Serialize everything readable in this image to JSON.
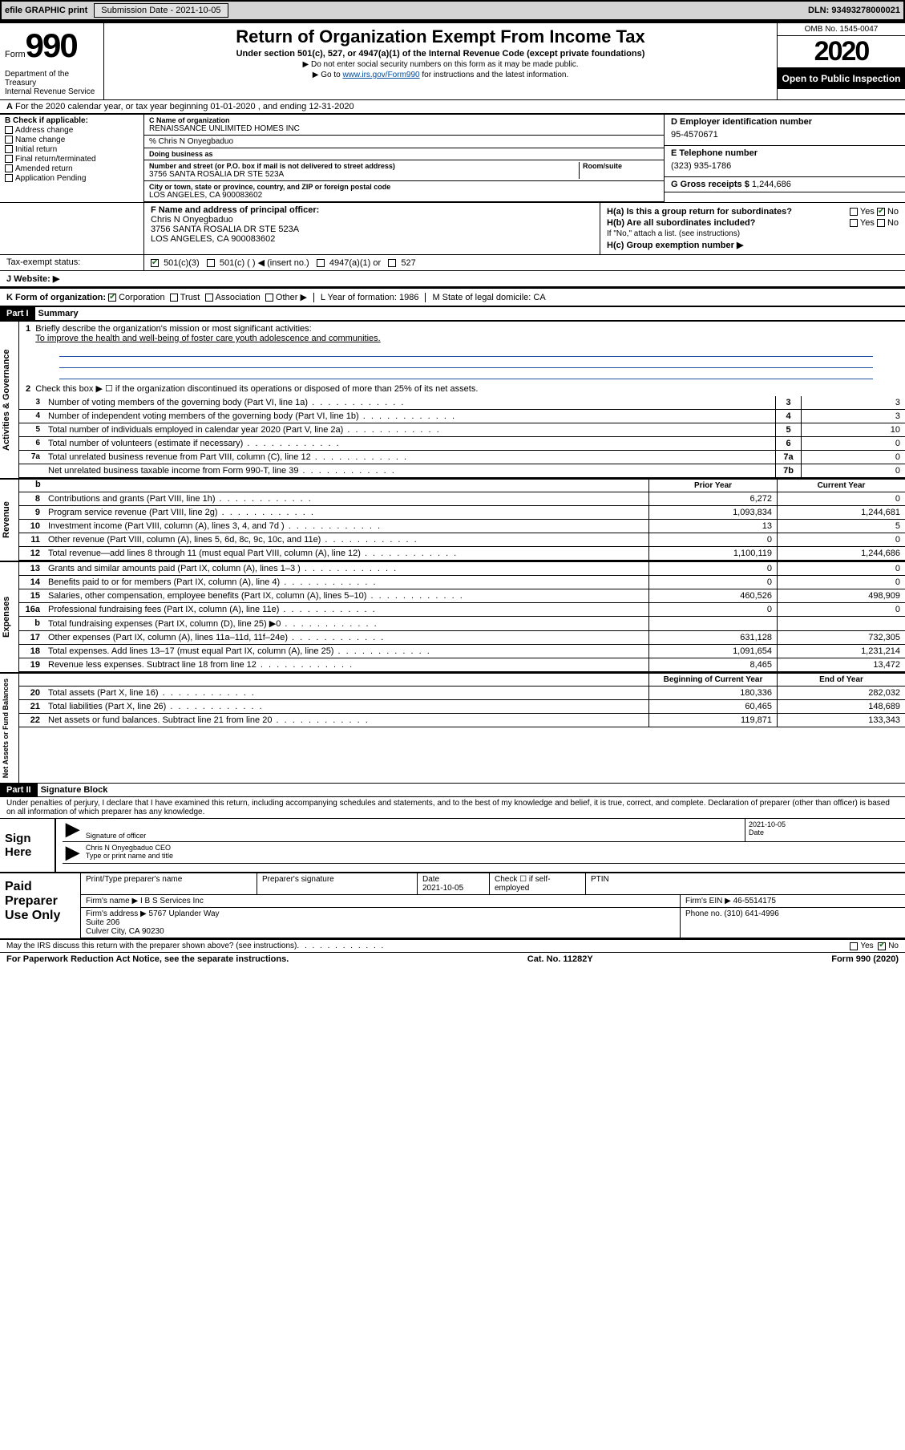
{
  "topbar": {
    "efile_label": "efile GRAPHIC print",
    "sub_label": "Submission Date - 2021-10-05",
    "dln": "DLN: 93493278000021"
  },
  "header": {
    "form_word": "Form",
    "form_num": "990",
    "dept": "Department of the Treasury\nInternal Revenue Service",
    "title": "Return of Organization Exempt From Income Tax",
    "sub1": "Under section 501(c), 527, or 4947(a)(1) of the Internal Revenue Code (except private foundations)",
    "sub2": "Do not enter social security numbers on this form as it may be made public.",
    "sub3_a": "Go to ",
    "sub3_link": "www.irs.gov/Form990",
    "sub3_b": " for instructions and the latest information.",
    "omb": "OMB No. 1545-0047",
    "year": "2020",
    "open": "Open to Public Inspection"
  },
  "line_a": "For the 2020 calendar year, or tax year beginning 01-01-2020    , and ending 12-31-2020",
  "box_b": {
    "hdr": "B Check if applicable:",
    "items": [
      "Address change",
      "Name change",
      "Initial return",
      "Final return/terminated",
      "Amended return",
      "Application Pending"
    ]
  },
  "box_c": {
    "name_lbl": "C Name of organization",
    "name": "RENAISSANCE UNLIMITED HOMES INC",
    "care": "% Chris N Onyegbaduo",
    "dba_lbl": "Doing business as",
    "addr_lbl": "Number and street (or P.O. box if mail is not delivered to street address)",
    "room_lbl": "Room/suite",
    "addr": "3756 SANTA ROSALIA DR STE 523A",
    "city_lbl": "City or town, state or province, country, and ZIP or foreign postal code",
    "city": "LOS ANGELES, CA   900083602"
  },
  "box_d": {
    "lbl": "D Employer identification number",
    "val": "95-4570671"
  },
  "box_e": {
    "lbl": "E Telephone number",
    "val": "(323) 935-1786"
  },
  "box_g": {
    "lbl": "G Gross receipts $",
    "val": "1,244,686"
  },
  "box_f": {
    "lbl": "F  Name and address of principal officer:",
    "name": "Chris N Onyegbaduo",
    "addr1": "3756 SANTA ROSALIA DR STE 523A",
    "addr2": "LOS ANGELES, CA   900083602"
  },
  "box_h": {
    "a": "H(a)  Is this a group return for subordinates?",
    "b": "H(b)  Are all subordinates included?",
    "b_note": "If \"No,\" attach a list. (see instructions)",
    "c": "H(c)  Group exemption number ▶",
    "yes": "Yes",
    "no": "No"
  },
  "box_i": {
    "lbl": "Tax-exempt status:",
    "opts": [
      "501(c)(3)",
      "501(c) (  ) ◀ (insert no.)",
      "4947(a)(1) or",
      "527"
    ]
  },
  "box_j": "J   Website: ▶",
  "box_k": {
    "lbl": "K Form of organization:",
    "opts": [
      "Corporation",
      "Trust",
      "Association",
      "Other ▶"
    ],
    "l": "L Year of formation: 1986",
    "m": "M State of legal domicile: CA"
  },
  "part1": {
    "num": "Part I",
    "title": "Summary"
  },
  "gov": {
    "vtab": "Activities & Governance",
    "l1_lbl": "Briefly describe the organization's mission or most significant activities:",
    "l1_val": "To improve the health and well-being of foster care youth adolescence and communities.",
    "l2": "Check this box ▶ ☐  if the organization discontinued its operations or disposed of more than 25% of its net assets.",
    "rows": [
      {
        "n": "3",
        "t": "Number of voting members of the governing body (Part VI, line 1a)",
        "b": "3",
        "v": "3"
      },
      {
        "n": "4",
        "t": "Number of independent voting members of the governing body (Part VI, line 1b)",
        "b": "4",
        "v": "3"
      },
      {
        "n": "5",
        "t": "Total number of individuals employed in calendar year 2020 (Part V, line 2a)",
        "b": "5",
        "v": "10"
      },
      {
        "n": "6",
        "t": "Total number of volunteers (estimate if necessary)",
        "b": "6",
        "v": "0"
      },
      {
        "n": "7a",
        "t": "Total unrelated business revenue from Part VIII, column (C), line 12",
        "b": "7a",
        "v": "0"
      },
      {
        "n": "",
        "t": "Net unrelated business taxable income from Form 990-T, line 39",
        "b": "7b",
        "v": "0"
      }
    ]
  },
  "rev": {
    "vtab": "Revenue",
    "hdr_prior": "Prior Year",
    "hdr_curr": "Current Year",
    "rows": [
      {
        "n": "8",
        "t": "Contributions and grants (Part VIII, line 1h)",
        "py": "6,272",
        "cy": "0"
      },
      {
        "n": "9",
        "t": "Program service revenue (Part VIII, line 2g)",
        "py": "1,093,834",
        "cy": "1,244,681"
      },
      {
        "n": "10",
        "t": "Investment income (Part VIII, column (A), lines 3, 4, and 7d )",
        "py": "13",
        "cy": "5"
      },
      {
        "n": "11",
        "t": "Other revenue (Part VIII, column (A), lines 5, 6d, 8c, 9c, 10c, and 11e)",
        "py": "0",
        "cy": "0"
      },
      {
        "n": "12",
        "t": "Total revenue—add lines 8 through 11 (must equal Part VIII, column (A), line 12)",
        "py": "1,100,119",
        "cy": "1,244,686"
      }
    ]
  },
  "exp": {
    "vtab": "Expenses",
    "rows": [
      {
        "n": "13",
        "t": "Grants and similar amounts paid (Part IX, column (A), lines 1–3 )",
        "py": "0",
        "cy": "0"
      },
      {
        "n": "14",
        "t": "Benefits paid to or for members (Part IX, column (A), line 4)",
        "py": "0",
        "cy": "0"
      },
      {
        "n": "15",
        "t": "Salaries, other compensation, employee benefits (Part IX, column (A), lines 5–10)",
        "py": "460,526",
        "cy": "498,909"
      },
      {
        "n": "16a",
        "t": "Professional fundraising fees (Part IX, column (A), line 11e)",
        "py": "0",
        "cy": "0"
      },
      {
        "n": "b",
        "t": "Total fundraising expenses (Part IX, column (D), line 25) ▶0",
        "py": "",
        "cy": "",
        "grey": true
      },
      {
        "n": "17",
        "t": "Other expenses (Part IX, column (A), lines 11a–11d, 11f–24e)",
        "py": "631,128",
        "cy": "732,305"
      },
      {
        "n": "18",
        "t": "Total expenses. Add lines 13–17 (must equal Part IX, column (A), line 25)",
        "py": "1,091,654",
        "cy": "1,231,214"
      },
      {
        "n": "19",
        "t": "Revenue less expenses. Subtract line 18 from line 12",
        "py": "8,465",
        "cy": "13,472"
      }
    ]
  },
  "net": {
    "vtab": "Net Assets or Fund Balances",
    "hdr_beg": "Beginning of Current Year",
    "hdr_end": "End of Year",
    "rows": [
      {
        "n": "20",
        "t": "Total assets (Part X, line 16)",
        "py": "180,336",
        "cy": "282,032"
      },
      {
        "n": "21",
        "t": "Total liabilities (Part X, line 26)",
        "py": "60,465",
        "cy": "148,689"
      },
      {
        "n": "22",
        "t": "Net assets or fund balances. Subtract line 21 from line 20",
        "py": "119,871",
        "cy": "133,343"
      }
    ]
  },
  "part2": {
    "num": "Part II",
    "title": "Signature Block"
  },
  "penalty": "Under penalties of perjury, I declare that I have examined this return, including accompanying schedules and statements, and to the best of my knowledge and belief, it is true, correct, and complete. Declaration of preparer (other than officer) is based on all information of which preparer has any knowledge.",
  "sign": {
    "lbl": "Sign Here",
    "sig_lbl": "Signature of officer",
    "date_lbl": "Date",
    "date": "2021-10-05",
    "name": "Chris N Onyegbaduo  CEO",
    "name_lbl": "Type or print name and title"
  },
  "prep": {
    "lbl": "Paid Preparer Use Only",
    "r1": {
      "c1": "Print/Type preparer's name",
      "c2": "Preparer's signature",
      "c3": "Date\n2021-10-05",
      "c4": "Check ☐ if self-employed",
      "c5": "PTIN"
    },
    "r2": {
      "c1": "Firm's name     ▶ I B S Services Inc",
      "c2": "Firm's EIN ▶ 46-5514175"
    },
    "r3": {
      "c1": "Firm's address ▶ 5767 Uplander Way\n                         Suite 206\n                         Culver City, CA   90230",
      "c2": "Phone no. (310) 641-4996"
    }
  },
  "discuss": {
    "t": "May the IRS discuss this return with the preparer shown above? (see instructions)",
    "yes": "Yes",
    "no": "No"
  },
  "foot": {
    "l": "For Paperwork Reduction Act Notice, see the separate instructions.",
    "c": "Cat. No. 11282Y",
    "r": "Form 990 (2020)"
  }
}
